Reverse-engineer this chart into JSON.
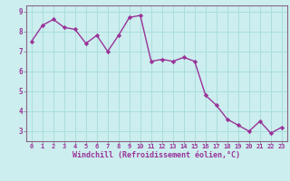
{
  "x": [
    0,
    1,
    2,
    3,
    4,
    5,
    6,
    7,
    8,
    9,
    10,
    11,
    12,
    13,
    14,
    15,
    16,
    17,
    18,
    19,
    20,
    21,
    22,
    23
  ],
  "y": [
    7.5,
    8.3,
    8.6,
    8.2,
    8.1,
    7.4,
    7.8,
    7.0,
    7.8,
    8.7,
    8.8,
    6.5,
    6.6,
    6.5,
    6.7,
    6.5,
    4.8,
    4.3,
    3.6,
    3.3,
    3.0,
    3.5,
    2.9,
    3.2
  ],
  "line_color": "#993399",
  "marker": "D",
  "marker_size": 2.2,
  "bg_color": "#cceeee",
  "grid_color": "#aadddd",
  "xlabel": "Windchill (Refroidissement éolien,°C)",
  "xlabel_color": "#993399",
  "tick_color": "#993399",
  "spine_color": "#886688",
  "xlim": [
    -0.5,
    23.5
  ],
  "ylim": [
    2.5,
    9.3
  ],
  "yticks": [
    3,
    4,
    5,
    6,
    7,
    8,
    9
  ],
  "xticks": [
    0,
    1,
    2,
    3,
    4,
    5,
    6,
    7,
    8,
    9,
    10,
    11,
    12,
    13,
    14,
    15,
    16,
    17,
    18,
    19,
    20,
    21,
    22,
    23
  ],
  "line_width": 1.0,
  "font_size_x": 5.0,
  "font_size_y": 5.5,
  "font_size_xlabel": 6.0
}
